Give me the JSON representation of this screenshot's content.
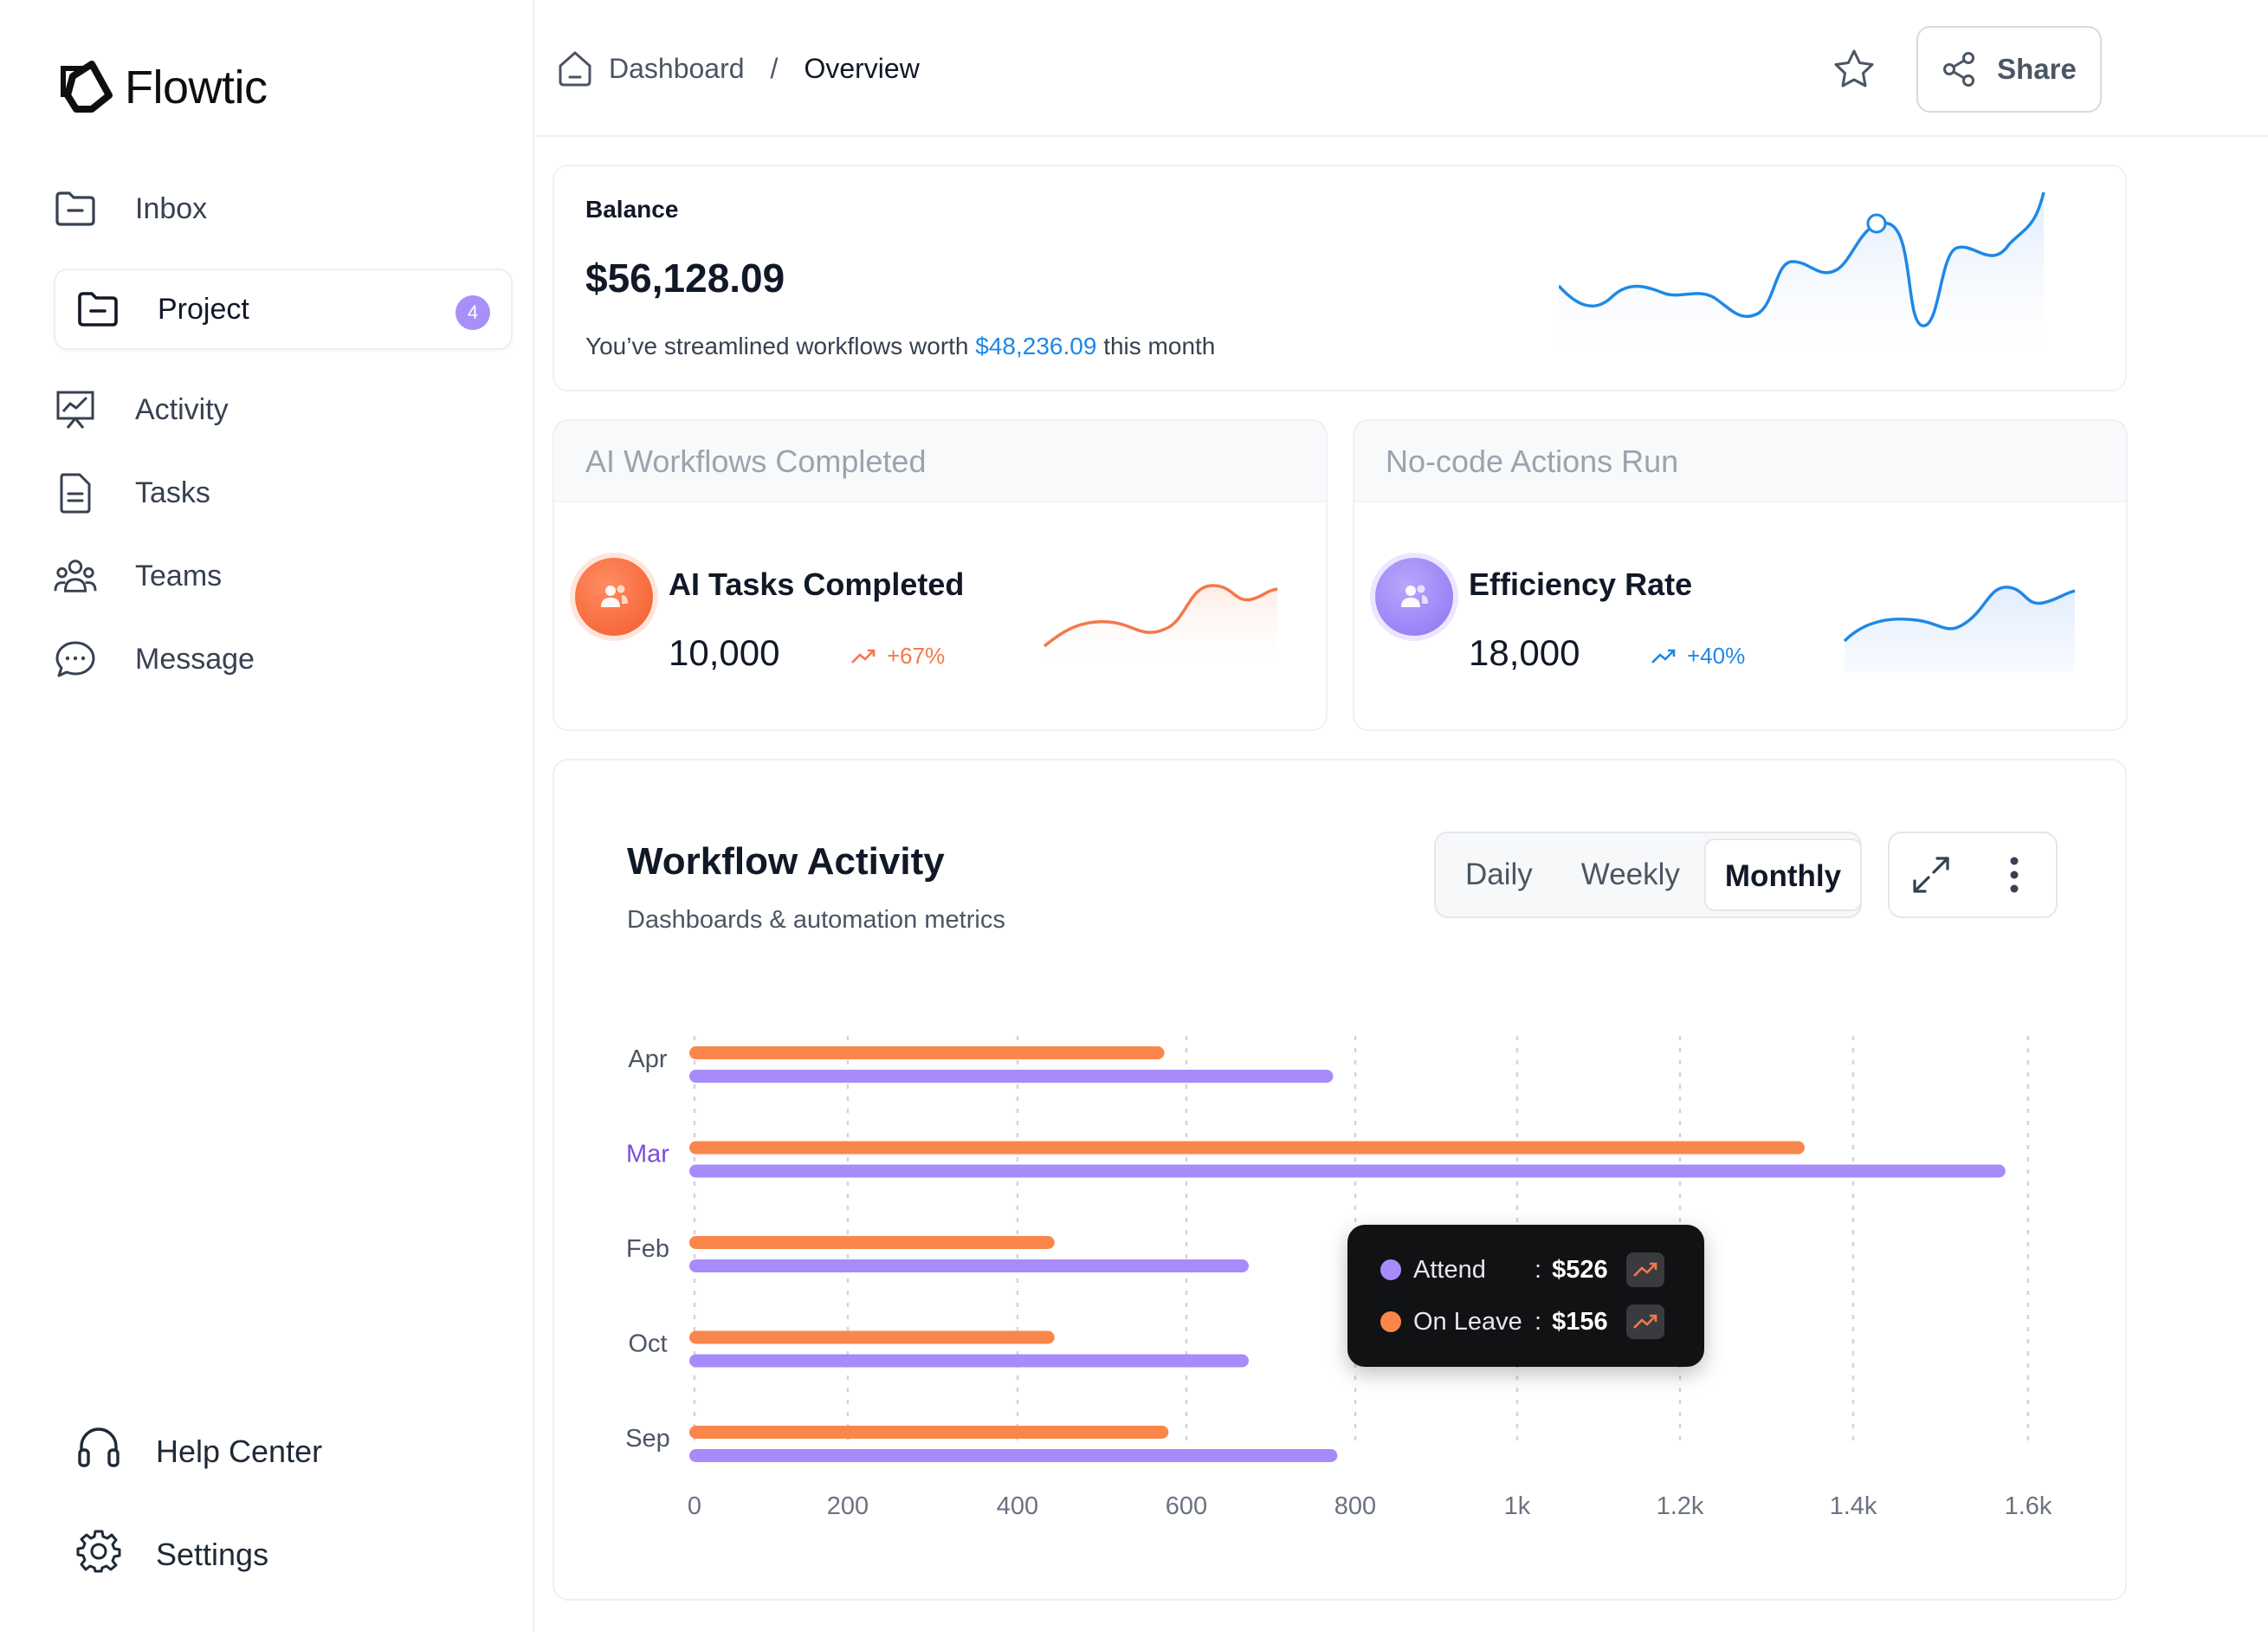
{
  "app": {
    "name": "Flowtic"
  },
  "sidebar": {
    "items": [
      {
        "label": "Inbox",
        "icon": "folder-minus-icon"
      },
      {
        "label": "Project",
        "icon": "folder-minus-icon",
        "badge": "4",
        "active": true
      },
      {
        "label": "Activity",
        "icon": "presentation-chart-icon"
      },
      {
        "label": "Tasks",
        "icon": "document-icon"
      },
      {
        "label": "Teams",
        "icon": "users-group-icon"
      },
      {
        "label": "Message",
        "icon": "chat-bubble-icon"
      }
    ],
    "bottom": [
      {
        "label": "Help Center",
        "icon": "headset-icon"
      },
      {
        "label": "Settings",
        "icon": "gear-icon"
      }
    ]
  },
  "header": {
    "breadcrumb": {
      "home": "Dashboard",
      "separator": "/",
      "current": "Overview"
    },
    "share_label": "Share"
  },
  "balance": {
    "label": "Balance",
    "amount": "$56,128.09",
    "sub_prefix": "You’ve streamlined workflows worth ",
    "sub_highlight": "$48,236.09",
    "sub_suffix": " this month"
  },
  "stats": [
    {
      "header": "AI Workflows Completed",
      "title": "AI Tasks Completed",
      "value": "10,000",
      "trend": "+67%",
      "color": "#f4784a"
    },
    {
      "header": "No-code Actions Run",
      "title": "Efficiency Rate",
      "value": "18,000",
      "trend": "+40%",
      "color": "#1e88e5"
    }
  ],
  "activity": {
    "title": "Workflow Activity",
    "subtitle": "Dashboards & automation metrics",
    "tabs": [
      "Daily",
      "Weekly",
      "Monthly"
    ],
    "active_tab": "Monthly"
  },
  "tooltip": {
    "rows": [
      {
        "label": "Attend",
        "value": "$526",
        "color": "#a78bfa"
      },
      {
        "label": "On Leave",
        "value": "$156",
        "color": "#fb864b"
      }
    ]
  },
  "colors": {
    "accent": "#1e88e5",
    "orange": "#fb864b",
    "purple": "#a78bfa",
    "highlight_label": "#7c4ddb"
  },
  "chart_data": {
    "type": "bar",
    "orientation": "horizontal",
    "categories": [
      "Apr",
      "Mar",
      "Feb",
      "Oct",
      "Sep"
    ],
    "highlighted_category": "Mar",
    "series": [
      {
        "values": [
          580,
          1350,
          450,
          450,
          585
        ]
      },
      {
        "values": [
          780,
          1580,
          680,
          680,
          785
        ]
      }
    ],
    "x_ticks": [
      0,
      200,
      400,
      600,
      800,
      1000,
      1200,
      1400,
      1600
    ],
    "x_tick_labels": [
      "0",
      "200",
      "400",
      "600",
      "800",
      "1k",
      "1.2k",
      "1.4k",
      "1.6k"
    ],
    "xlim": [
      0,
      1600
    ],
    "grid": "vertical dashed"
  }
}
